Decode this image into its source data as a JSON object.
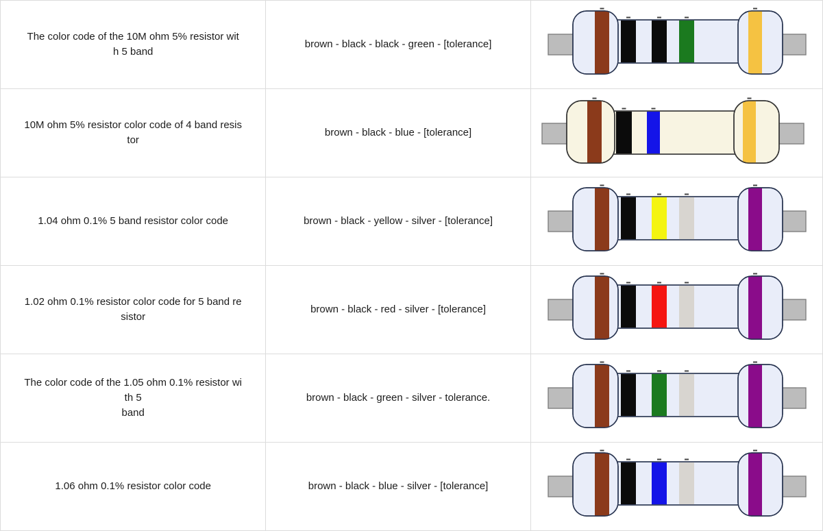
{
  "colors": {
    "brown": "#8B3A1B",
    "black": "#0B0B0B",
    "green": "#1B7A1F",
    "gold": "#F5C242",
    "blue": "#1414E8",
    "yellow": "#F4F411",
    "red": "#F51511",
    "silver": "#D8D5D0",
    "purple": "#8A0C8A",
    "body_five_band": "#E9EDF9",
    "body_four_band": "#F8F4E2",
    "outline_five_band": "#26324E",
    "outline_four_band": "#333333",
    "lead": "#BCBCBC",
    "lead_outline": "#7F7F7F",
    "table_border": "#DCDCDC"
  },
  "rows": [
    {
      "question": "The color code of the 10M ohm 5% resistor wit\nh 5 band",
      "answer": "brown - black - black - green - [tolerance]",
      "bands": [
        "brown",
        "black",
        "black",
        "green",
        "gold"
      ],
      "band_count": 5
    },
    {
      "question": "10M ohm 5% resistor color code of 4 band resis\ntor",
      "answer": "brown - black - blue - [tolerance]",
      "bands": [
        "brown",
        "black",
        "blue",
        "gold"
      ],
      "band_count": 4
    },
    {
      "question": "1.04 ohm 0.1% 5 band resistor color code",
      "answer": "brown - black - yellow - silver - [tolerance]",
      "bands": [
        "brown",
        "black",
        "yellow",
        "silver",
        "purple"
      ],
      "band_count": 5
    },
    {
      "question": "1.02 ohm 0.1% resistor color code for 5 band re\nsistor",
      "answer": "brown - black - red - silver - [tolerance]",
      "bands": [
        "brown",
        "black",
        "red",
        "silver",
        "purple"
      ],
      "band_count": 5
    },
    {
      "question": "The color code of the 1.05 ohm 0.1% resistor wi\nth 5\nband",
      "answer": "brown - black - green - silver - tolerance.",
      "bands": [
        "brown",
        "black",
        "green",
        "silver",
        "purple"
      ],
      "band_count": 5
    },
    {
      "question": "1.06 ohm 0.1% resistor color code",
      "answer": "brown - black - blue - silver - [tolerance]",
      "bands": [
        "brown",
        "black",
        "blue",
        "silver",
        "purple"
      ],
      "band_count": 5
    }
  ]
}
